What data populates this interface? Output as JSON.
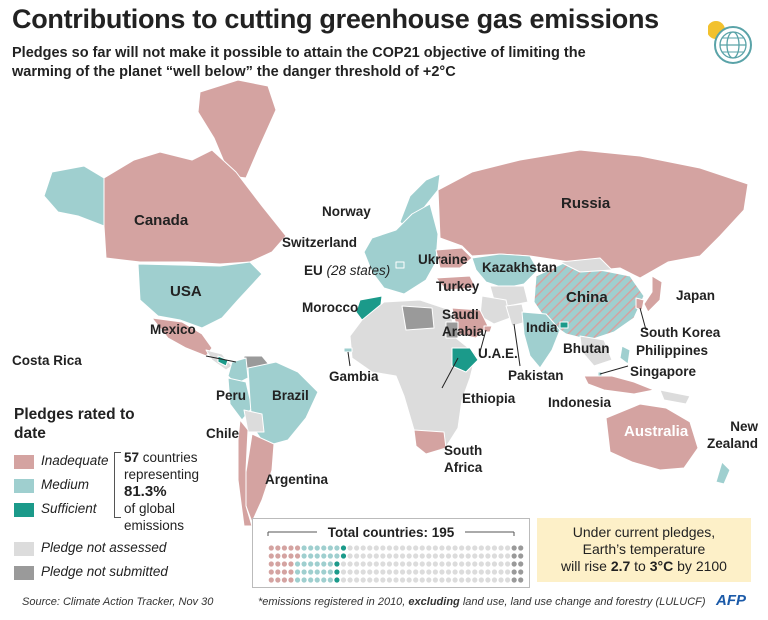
{
  "header": {
    "title": "Contributions to cutting greenhouse gas emissions",
    "subtitle": "Pledges so far will not make it possible to attain the COP21 objective of limiting the warming of the planet “well below” the danger threshold of +2°C"
  },
  "colors": {
    "inadequate": "#d4a3a1",
    "medium": "#9fcfcf",
    "sufficient": "#1b9a8a",
    "not_assessed": "#dcdcdc",
    "not_submitted": "#9a9a9a",
    "ocean": "#ffffff",
    "note_bg": "#fdf0c8"
  },
  "map": {
    "countries": {
      "canada": "Canada",
      "usa": "USA",
      "mexico": "Mexico",
      "costa_rica": "Costa Rica",
      "peru": "Peru",
      "brazil": "Brazil",
      "chile": "Chile",
      "argentina": "Argentina",
      "norway": "Norway",
      "switzerland": "Switzerland",
      "eu": "EU",
      "eu_note": "(28 states)",
      "morocco": "Morocco",
      "gambia": "Gambia",
      "ukraine": "Ukraine",
      "turkey": "Turkey",
      "russia": "Russia",
      "kazakhstan": "Kazakhstan",
      "china": "China",
      "japan": "Japan",
      "south_korea": "South Korea",
      "philippines": "Philippines",
      "singapore": "Singapore",
      "indonesia": "Indonesia",
      "australia": "Australia",
      "new_zealand": "New Zealand",
      "india": "India",
      "bhutan": "Bhutan",
      "pakistan": "Pakistan",
      "saudi_arabia": "Saudi Arabia",
      "uae": "U.A.E.",
      "ethiopia": "Ethiopia",
      "south_africa": "South Africa"
    }
  },
  "legend": {
    "title": "Pledges rated to date",
    "items": [
      {
        "key": "inadequate",
        "label": "Inadequate"
      },
      {
        "key": "medium",
        "label": "Medium"
      },
      {
        "key": "sufficient",
        "label": "Sufficient"
      },
      {
        "key": "not_assessed",
        "label": "Pledge not assessed"
      },
      {
        "key": "not_submitted",
        "label": "Pledge not submitted"
      }
    ],
    "stat": {
      "count": "57",
      "line1": " countries",
      "line2": "representing",
      "pct": "81.3%",
      "line3": "of global",
      "line4": "emissions"
    }
  },
  "totals": {
    "label": "Total countries: 195",
    "total": 195,
    "inadequate": 22,
    "medium": 30,
    "sufficient": 5,
    "not_submitted": 10
  },
  "note": {
    "line1": "Under current pledges,",
    "line2": "Earth’s temperature",
    "prefix": "will rise ",
    "low": "2.7",
    "mid": " to ",
    "high": "3°C",
    "suffix": " by 2100"
  },
  "footer": {
    "source": "Source: Climate Action Tracker, Nov 30",
    "note_pre": "*emissions registered in 2010, ",
    "note_bold": "excluding",
    "note_post": " land use, land use change and forestry (LULUCF)",
    "logo": "AFP"
  }
}
